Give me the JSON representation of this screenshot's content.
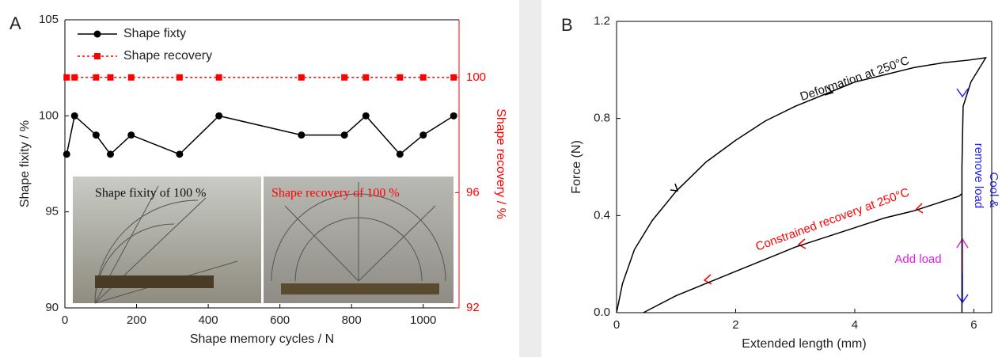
{
  "chart_data": [
    {
      "type": "line",
      "panel_label": "A",
      "x_label": "Shape memory cycles / N",
      "y_label": "Shape fixity / %",
      "y2_label": "Shape recovery / %",
      "xlim": [
        0,
        1100
      ],
      "xticks": [
        0,
        200,
        400,
        600,
        800,
        1000
      ],
      "ylim": [
        90,
        105
      ],
      "yticks": [
        90,
        95,
        100,
        105
      ],
      "y2lim": [
        92,
        102
      ],
      "y2ticks": [
        92,
        96,
        100
      ],
      "series": [
        {
          "name": "Shape fixty",
          "color": "#000000",
          "marker": "circle",
          "linestyle": "solid",
          "x": [
            5,
            27,
            87,
            127,
            185,
            320,
            430,
            660,
            780,
            840,
            935,
            1000,
            1085
          ],
          "values": [
            98,
            100,
            99,
            98,
            99,
            98,
            100,
            99,
            99,
            100,
            98,
            99,
            100
          ]
        },
        {
          "name": "Shape recovery",
          "color": "#ff0000",
          "marker": "square",
          "linestyle": "dotted",
          "axis": "y2",
          "x": [
            5,
            27,
            87,
            127,
            185,
            320,
            430,
            660,
            780,
            840,
            935,
            1000,
            1085
          ],
          "values": [
            100,
            100,
            100,
            100,
            100,
            100,
            100,
            100,
            100,
            100,
            100,
            100,
            100
          ]
        }
      ],
      "annotations": [
        {
          "text": "Shape fixity of 100 %",
          "color": "#111111"
        },
        {
          "text": "Shape recovery of 100 %",
          "color": "#ff0000"
        }
      ]
    },
    {
      "type": "line",
      "panel_label": "B",
      "x_label": "Extended length (mm)",
      "y_label": "Force (N)",
      "xlim": [
        0,
        6.3
      ],
      "xticks": [
        0,
        2,
        4,
        6
      ],
      "ylim": [
        0,
        1.2
      ],
      "yticks": [
        {
          "value": 0,
          "label": "0.0"
        },
        {
          "value": 0.4,
          "label": "0.4"
        },
        {
          "value": 0.8,
          "label": "0.8"
        },
        {
          "value": 1.2,
          "label": "1.2"
        }
      ],
      "series": [
        {
          "color": "#000000",
          "linestyle": "solid",
          "x": [
            0,
            0.1,
            0.3,
            0.6,
            1,
            1.5,
            2,
            2.5,
            3,
            3.5,
            4,
            4.5,
            5,
            5.5,
            5.9,
            6.2,
            5.95,
            5.82,
            5.8,
            5.8,
            5.8
          ],
          "values": [
            0,
            0.12,
            0.26,
            0.38,
            0.5,
            0.62,
            0.71,
            0.79,
            0.85,
            0.9,
            0.95,
            0.98,
            1.01,
            1.03,
            1.04,
            1.05,
            0.95,
            0.85,
            0.6,
            0.3,
            0
          ]
        },
        {
          "color": "#000000",
          "linestyle": "solid",
          "x": [
            0.45,
            1,
            1.5,
            2,
            2.5,
            3,
            3.5,
            4,
            4.5,
            5,
            5.5,
            5.75,
            5.8
          ],
          "values": [
            0,
            0.07,
            0.12,
            0.17,
            0.22,
            0.27,
            0.31,
            0.35,
            0.39,
            0.42,
            0.46,
            0.48,
            0.49
          ]
        }
      ],
      "annotations": [
        {
          "text": "Deformation at 250°C",
          "color": "#111111"
        },
        {
          "text": "Constrained recovery at 250°C",
          "color": "#ff0000"
        },
        {
          "text": "Add load",
          "color": "#e020e0"
        },
        {
          "text": "Cool &",
          "color": "#2020ff"
        },
        {
          "text": "remove load",
          "color": "#2020ff"
        }
      ]
    }
  ]
}
